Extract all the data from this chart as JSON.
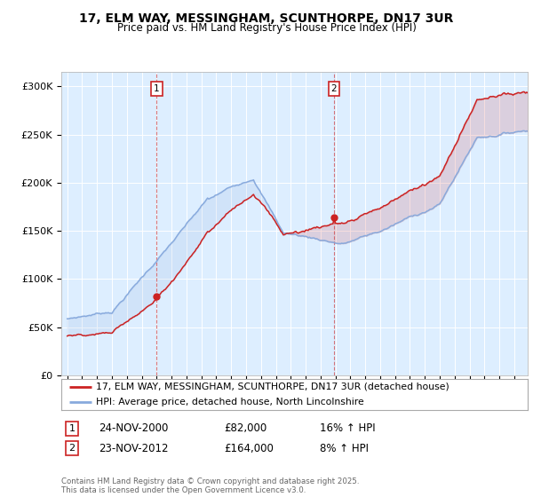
{
  "title1": "17, ELM WAY, MESSINGHAM, SCUNTHORPE, DN17 3UR",
  "title2": "Price paid vs. HM Land Registry's House Price Index (HPI)",
  "ylabel_ticks": [
    "£0",
    "£50K",
    "£100K",
    "£150K",
    "£200K",
    "£250K",
    "£300K"
  ],
  "ytick_values": [
    0,
    50000,
    100000,
    150000,
    200000,
    250000,
    300000
  ],
  "ylim": [
    0,
    315000
  ],
  "fig_bg": "#ffffff",
  "plot_bg_color": "#ddeeff",
  "red_color": "#cc2222",
  "blue_color": "#88aadd",
  "marker1_year": 2001.0,
  "marker2_year": 2012.9,
  "legend_line1": "17, ELM WAY, MESSINGHAM, SCUNTHORPE, DN17 3UR (detached house)",
  "legend_line2": "HPI: Average price, detached house, North Lincolnshire",
  "ann1_label": "1",
  "ann1_date": "24-NOV-2000",
  "ann1_price": "£82,000",
  "ann1_hpi": "16% ↑ HPI",
  "ann2_label": "2",
  "ann2_date": "23-NOV-2012",
  "ann2_price": "£164,000",
  "ann2_hpi": "8% ↑ HPI",
  "copyright": "Contains HM Land Registry data © Crown copyright and database right 2025.\nThis data is licensed under the Open Government Licence v3.0."
}
